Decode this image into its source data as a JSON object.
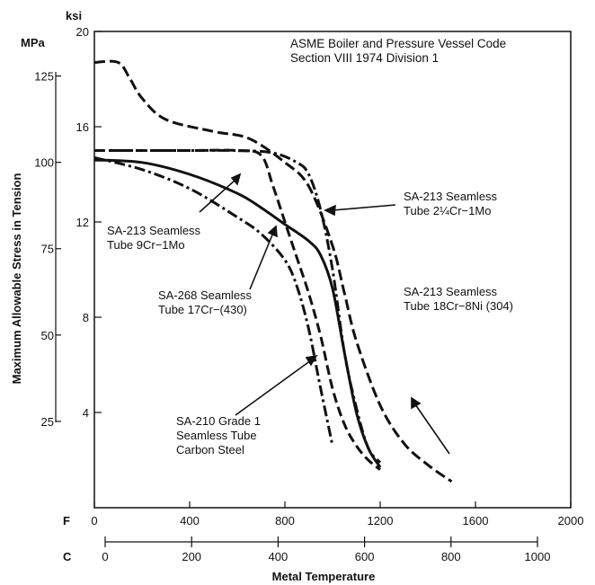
{
  "chart_data": {
    "type": "line",
    "title": "ASME Boiler and Pressure Vessel Code",
    "subtitle": "Section VIII 1974 Division 1",
    "ylabel": "Maximum Allowable Stress in Tension",
    "xlabel": "Metal Temperature",
    "y_ksi": {
      "unit": "ksi",
      "ticks": [
        "4",
        "8",
        "12",
        "16",
        "20"
      ],
      "lim": [
        0,
        20
      ]
    },
    "y_mpa": {
      "unit": "MPa",
      "ticks": [
        "25",
        "50",
        "75",
        "100",
        "125"
      ]
    },
    "x_f": {
      "unit": "F",
      "ticks": [
        "0",
        "400",
        "800",
        "1200",
        "1600",
        "2000"
      ],
      "lim": [
        0,
        2000
      ]
    },
    "x_c": {
      "unit": "C",
      "ticks": [
        "0",
        "200",
        "400",
        "600",
        "800",
        "1000"
      ]
    },
    "grid": false,
    "series": [
      {
        "name": "SA-213 Seamless Tube 18Cr−8Ni (304)",
        "style": "solid-dash",
        "x": [
          0,
          100,
          150,
          200,
          300,
          500,
          650,
          800,
          900,
          1000,
          1050,
          1100,
          1200,
          1300,
          1400,
          1500
        ],
        "y": [
          18.7,
          18.7,
          18.0,
          17.2,
          16.3,
          15.8,
          15.5,
          14.5,
          13.5,
          11.0,
          9.0,
          7.0,
          4.3,
          2.7,
          1.8,
          1.1
        ]
      },
      {
        "name": "SA-213 Seamless Tube 2¼Cr−1Mo",
        "style": "dash-dot",
        "x": [
          0,
          200,
          400,
          600,
          750,
          850,
          900,
          950,
          1000,
          1050,
          1100,
          1150,
          1200
        ],
        "y": [
          15.0,
          15.0,
          15.0,
          15.0,
          14.9,
          14.5,
          14.0,
          12.5,
          10.0,
          6.5,
          4.2,
          2.5,
          1.9
        ]
      },
      {
        "name": "SA-213 Seamless Tube 9Cr−1Mo",
        "style": "solid",
        "x": [
          0,
          200,
          400,
          600,
          700,
          800,
          900,
          950,
          1000,
          1050,
          1100,
          1150,
          1200
        ],
        "y": [
          14.6,
          14.5,
          14.0,
          13.2,
          12.6,
          11.9,
          11.2,
          10.6,
          9.2,
          6.5,
          4.0,
          2.5,
          1.7
        ]
      },
      {
        "name": "SA-268 Seamless Tube 17Cr−(430)",
        "style": "dashed",
        "x": [
          0,
          200,
          400,
          600,
          700,
          750,
          800,
          850,
          900,
          950,
          1000,
          1050,
          1100,
          1150,
          1200
        ],
        "y": [
          15.0,
          15.0,
          15.0,
          15.0,
          14.8,
          13.5,
          12.0,
          10.5,
          9.0,
          7.2,
          5.0,
          3.5,
          2.6,
          2.0,
          1.6
        ]
      },
      {
        "name": "SA-210 Grade 1 Seamless Tube Carbon Steel",
        "style": "dash-dot",
        "x": [
          0,
          200,
          400,
          600,
          700,
          800,
          850,
          900,
          950,
          1000
        ],
        "y": [
          14.7,
          14.2,
          13.4,
          12.2,
          11.5,
          10.4,
          9.3,
          7.5,
          5.0,
          2.6
        ]
      }
    ],
    "annotations": [
      {
        "lines": [
          "SA-213 Seamless",
          "Tube 2¼Cr−1Mo"
        ]
      },
      {
        "lines": [
          "SA-213 Seamless",
          "Tube 9Cr−1Mo"
        ]
      },
      {
        "lines": [
          "SA-268 Seamless",
          "Tube 17Cr−(430)"
        ]
      },
      {
        "lines": [
          "SA-213 Seamless",
          "Tube 18Cr−8Ni (304)"
        ]
      },
      {
        "lines": [
          "SA-210 Grade 1",
          "Seamless Tube",
          "Carbon Steel"
        ]
      }
    ]
  }
}
